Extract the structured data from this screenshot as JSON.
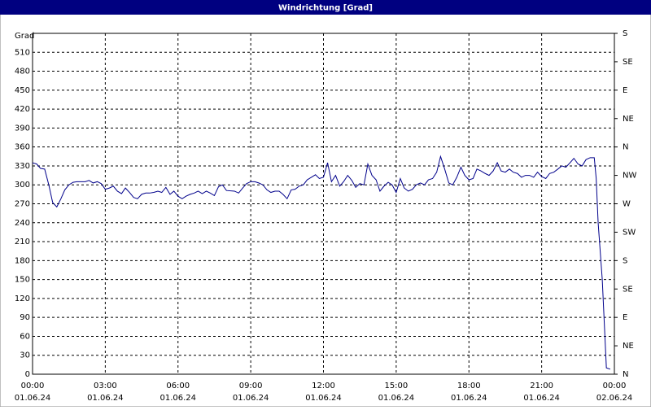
{
  "chart_data": {
    "type": "line",
    "title": "Windrichtung [Grad]",
    "y_label": "Grad",
    "x": [
      0,
      0.17,
      0.33,
      0.5,
      0.67,
      0.83,
      1,
      1.17,
      1.33,
      1.5,
      1.67,
      1.83,
      2,
      2.17,
      2.33,
      2.5,
      2.67,
      2.83,
      3,
      3.17,
      3.33,
      3.5,
      3.67,
      3.83,
      4,
      4.17,
      4.33,
      4.5,
      4.67,
      4.83,
      5,
      5.17,
      5.33,
      5.5,
      5.67,
      5.83,
      6,
      6.17,
      6.33,
      6.5,
      6.67,
      6.83,
      7,
      7.17,
      7.33,
      7.5,
      7.67,
      7.83,
      8,
      8.33,
      8.5,
      8.67,
      8.83,
      9,
      9.17,
      9.33,
      9.5,
      9.67,
      9.83,
      10,
      10.17,
      10.33,
      10.5,
      10.67,
      10.83,
      11,
      11.17,
      11.33,
      11.5,
      11.67,
      11.83,
      12,
      12.17,
      12.33,
      12.5,
      12.67,
      12.83,
      13,
      13.17,
      13.33,
      13.5,
      13.67,
      13.83,
      14,
      14.17,
      14.33,
      14.5,
      14.67,
      14.83,
      15,
      15.17,
      15.33,
      15.5,
      15.67,
      15.83,
      16,
      16.17,
      16.33,
      16.5,
      16.67,
      16.83,
      17,
      17.17,
      17.33,
      17.5,
      17.67,
      17.83,
      18,
      18.17,
      18.33,
      18.5,
      18.67,
      18.83,
      19,
      19.17,
      19.33,
      19.5,
      19.67,
      19.83,
      20,
      20.17,
      20.33,
      20.5,
      20.67,
      20.83,
      21,
      21.17,
      21.33,
      21.5,
      21.67,
      21.83,
      22,
      22.17,
      22.33,
      22.5,
      22.67,
      22.83,
      23,
      23.17,
      23.25,
      23.33,
      23.5,
      23.67,
      23.83
    ],
    "series": [
      {
        "name": "Windrichtung",
        "color": "#00008b",
        "values": [
          335,
          333,
          326,
          325,
          300,
          272,
          265,
          278,
          292,
          300,
          304,
          305,
          305,
          305,
          307,
          303,
          305,
          302,
          293,
          295,
          298,
          290,
          286,
          295,
          288,
          280,
          278,
          285,
          287,
          287,
          288,
          290,
          288,
          296,
          285,
          290,
          282,
          278,
          282,
          285,
          287,
          290,
          286,
          290,
          287,
          283,
          297,
          300,
          291,
          290,
          287,
          295,
          302,
          305,
          305,
          303,
          300,
          292,
          288,
          290,
          290,
          285,
          278,
          292,
          293,
          298,
          300,
          308,
          312,
          316,
          310,
          312,
          335,
          305,
          315,
          298,
          305,
          315,
          307,
          296,
          302,
          300,
          333,
          315,
          308,
          290,
          298,
          304,
          300,
          288,
          310,
          295,
          290,
          293,
          300,
          303,
          300,
          308,
          310,
          320,
          345,
          325,
          303,
          300,
          312,
          328,
          315,
          308,
          310,
          325,
          322,
          318,
          315,
          322,
          335,
          322,
          320,
          325,
          320,
          318,
          312,
          315,
          315,
          312,
          320,
          313,
          310,
          318,
          320,
          325,
          330,
          328,
          335,
          342,
          333,
          330,
          340,
          343,
          343,
          310,
          240,
          150,
          10,
          8
        ]
      }
    ],
    "xlim": [
      0,
      24
    ],
    "xticks": [
      {
        "value": 0,
        "label": [
          "00:00",
          "01.06.24"
        ]
      },
      {
        "value": 3,
        "label": [
          "03:00",
          "01.06.24"
        ]
      },
      {
        "value": 6,
        "label": [
          "06:00",
          "01.06.24"
        ]
      },
      {
        "value": 9,
        "label": [
          "09:00",
          "01.06.24"
        ]
      },
      {
        "value": 12,
        "label": [
          "12:00",
          "01.06.24"
        ]
      },
      {
        "value": 15,
        "label": [
          "15:00",
          "01.06.24"
        ]
      },
      {
        "value": 18,
        "label": [
          "18:00",
          "01.06.24"
        ]
      },
      {
        "value": 21,
        "label": [
          "21:00",
          "01.06.24"
        ]
      },
      {
        "value": 24,
        "label": [
          "00:00",
          "02.06.24"
        ]
      }
    ],
    "ylim": [
      0,
      540
    ],
    "yticks": [
      0,
      30,
      60,
      90,
      120,
      150,
      180,
      210,
      240,
      270,
      300,
      330,
      360,
      390,
      420,
      450,
      480,
      510
    ],
    "y2lim": [
      0,
      540
    ],
    "y2ticks": [
      {
        "value": 0,
        "label": "N"
      },
      {
        "value": 45,
        "label": "NE"
      },
      {
        "value": 90,
        "label": "E"
      },
      {
        "value": 135,
        "label": "SE"
      },
      {
        "value": 180,
        "label": "S"
      },
      {
        "value": 225,
        "label": "SW"
      },
      {
        "value": 270,
        "label": "W"
      },
      {
        "value": 315,
        "label": "NW"
      },
      {
        "value": 360,
        "label": "N"
      },
      {
        "value": 405,
        "label": "NE"
      },
      {
        "value": 450,
        "label": "E"
      },
      {
        "value": 495,
        "label": "SE"
      },
      {
        "value": 540,
        "label": "S"
      }
    ],
    "grid": true
  }
}
